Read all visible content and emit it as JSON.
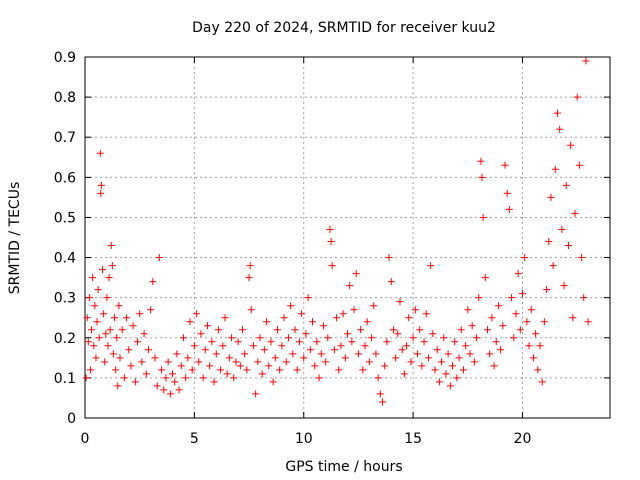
{
  "chart_data": {
    "type": "scatter",
    "title": "Day 220 of 2024, SRMTID for receiver kuu2",
    "xlabel": "GPS time / hours",
    "ylabel": "SRMTID / TECUs",
    "xlim": [
      0,
      24
    ],
    "ylim": [
      0,
      0.9
    ],
    "xticks": [
      0,
      5,
      10,
      15,
      20
    ],
    "yticks": [
      0,
      0.1,
      0.2,
      0.3,
      0.4,
      0.5,
      0.6,
      0.7,
      0.8,
      0.9
    ],
    "xtick_labels": [
      "0",
      "5",
      "10",
      "15",
      "20"
    ],
    "ytick_labels": [
      "0",
      "0.1",
      "0.2",
      "0.3",
      "0.4",
      "0.5",
      "0.6",
      "0.7",
      "0.8",
      "0.9"
    ],
    "grid": true,
    "marker": "+",
    "color": "#ff0000",
    "series": [
      {
        "name": "SRMTID",
        "points": [
          [
            0.05,
            0.1
          ],
          [
            0.1,
            0.25
          ],
          [
            0.15,
            0.19
          ],
          [
            0.2,
            0.3
          ],
          [
            0.25,
            0.12
          ],
          [
            0.3,
            0.22
          ],
          [
            0.35,
            0.35
          ],
          [
            0.4,
            0.18
          ],
          [
            0.45,
            0.28
          ],
          [
            0.5,
            0.15
          ],
          [
            0.55,
            0.24
          ],
          [
            0.6,
            0.32
          ],
          [
            0.65,
            0.2
          ],
          [
            0.7,
            0.66
          ],
          [
            0.72,
            0.56
          ],
          [
            0.75,
            0.58
          ],
          [
            0.8,
            0.37
          ],
          [
            0.85,
            0.26
          ],
          [
            0.9,
            0.14
          ],
          [
            0.95,
            0.21
          ],
          [
            1.0,
            0.3
          ],
          [
            1.05,
            0.18
          ],
          [
            1.1,
            0.35
          ],
          [
            1.15,
            0.22
          ],
          [
            1.2,
            0.43
          ],
          [
            1.25,
            0.38
          ],
          [
            1.3,
            0.16
          ],
          [
            1.35,
            0.25
          ],
          [
            1.4,
            0.12
          ],
          [
            1.45,
            0.2
          ],
          [
            1.5,
            0.08
          ],
          [
            1.55,
            0.28
          ],
          [
            1.6,
            0.15
          ],
          [
            1.7,
            0.22
          ],
          [
            1.8,
            0.1
          ],
          [
            1.9,
            0.25
          ],
          [
            2.0,
            0.17
          ],
          [
            2.1,
            0.13
          ],
          [
            2.2,
            0.23
          ],
          [
            2.3,
            0.09
          ],
          [
            2.4,
            0.19
          ],
          [
            2.5,
            0.26
          ],
          [
            2.6,
            0.14
          ],
          [
            2.7,
            0.21
          ],
          [
            2.8,
            0.11
          ],
          [
            2.9,
            0.17
          ],
          [
            3.0,
            0.27
          ],
          [
            3.1,
            0.34
          ],
          [
            3.2,
            0.15
          ],
          [
            3.3,
            0.08
          ],
          [
            3.4,
            0.4
          ],
          [
            3.5,
            0.12
          ],
          [
            3.6,
            0.07
          ],
          [
            3.7,
            0.1
          ],
          [
            3.8,
            0.14
          ],
          [
            3.9,
            0.06
          ],
          [
            4.0,
            0.11
          ],
          [
            4.1,
            0.09
          ],
          [
            4.2,
            0.16
          ],
          [
            4.3,
            0.07
          ],
          [
            4.4,
            0.13
          ],
          [
            4.5,
            0.2
          ],
          [
            4.6,
            0.1
          ],
          [
            4.7,
            0.15
          ],
          [
            4.8,
            0.24
          ],
          [
            4.9,
            0.12
          ],
          [
            5.0,
            0.18
          ],
          [
            5.1,
            0.26
          ],
          [
            5.2,
            0.14
          ],
          [
            5.3,
            0.21
          ],
          [
            5.4,
            0.1
          ],
          [
            5.5,
            0.17
          ],
          [
            5.6,
            0.23
          ],
          [
            5.7,
            0.13
          ],
          [
            5.8,
            0.19
          ],
          [
            5.9,
            0.09
          ],
          [
            6.0,
            0.16
          ],
          [
            6.1,
            0.22
          ],
          [
            6.2,
            0.12
          ],
          [
            6.3,
            0.18
          ],
          [
            6.4,
            0.25
          ],
          [
            6.5,
            0.11
          ],
          [
            6.6,
            0.15
          ],
          [
            6.7,
            0.2
          ],
          [
            6.8,
            0.1
          ],
          [
            6.9,
            0.14
          ],
          [
            7.0,
            0.19
          ],
          [
            7.1,
            0.13
          ],
          [
            7.2,
            0.22
          ],
          [
            7.3,
            0.16
          ],
          [
            7.4,
            0.12
          ],
          [
            7.5,
            0.35
          ],
          [
            7.55,
            0.38
          ],
          [
            7.6,
            0.27
          ],
          [
            7.7,
            0.18
          ],
          [
            7.8,
            0.06
          ],
          [
            7.9,
            0.14
          ],
          [
            8.0,
            0.2
          ],
          [
            8.1,
            0.11
          ],
          [
            8.2,
            0.17
          ],
          [
            8.3,
            0.24
          ],
          [
            8.4,
            0.13
          ],
          [
            8.5,
            0.19
          ],
          [
            8.6,
            0.09
          ],
          [
            8.7,
            0.15
          ],
          [
            8.8,
            0.22
          ],
          [
            8.9,
            0.12
          ],
          [
            9.0,
            0.18
          ],
          [
            9.1,
            0.25
          ],
          [
            9.2,
            0.14
          ],
          [
            9.3,
            0.2
          ],
          [
            9.4,
            0.28
          ],
          [
            9.5,
            0.16
          ],
          [
            9.6,
            0.22
          ],
          [
            9.7,
            0.12
          ],
          [
            9.8,
            0.19
          ],
          [
            9.9,
            0.26
          ],
          [
            10.0,
            0.15
          ],
          [
            10.1,
            0.21
          ],
          [
            10.2,
            0.3
          ],
          [
            10.3,
            0.17
          ],
          [
            10.4,
            0.24
          ],
          [
            10.5,
            0.13
          ],
          [
            10.6,
            0.19
          ],
          [
            10.7,
            0.1
          ],
          [
            10.8,
            0.16
          ],
          [
            10.9,
            0.23
          ],
          [
            11.0,
            0.14
          ],
          [
            11.1,
            0.2
          ],
          [
            11.2,
            0.47
          ],
          [
            11.25,
            0.44
          ],
          [
            11.3,
            0.38
          ],
          [
            11.4,
            0.17
          ],
          [
            11.5,
            0.25
          ],
          [
            11.6,
            0.12
          ],
          [
            11.7,
            0.18
          ],
          [
            11.8,
            0.26
          ],
          [
            11.9,
            0.15
          ],
          [
            12.0,
            0.21
          ],
          [
            12.1,
            0.33
          ],
          [
            12.2,
            0.19
          ],
          [
            12.3,
            0.27
          ],
          [
            12.4,
            0.36
          ],
          [
            12.5,
            0.16
          ],
          [
            12.6,
            0.22
          ],
          [
            12.7,
            0.12
          ],
          [
            12.8,
            0.18
          ],
          [
            12.9,
            0.24
          ],
          [
            13.0,
            0.14
          ],
          [
            13.1,
            0.2
          ],
          [
            13.2,
            0.28
          ],
          [
            13.3,
            0.16
          ],
          [
            13.4,
            0.1
          ],
          [
            13.5,
            0.06
          ],
          [
            13.6,
            0.04
          ],
          [
            13.7,
            0.13
          ],
          [
            13.8,
            0.19
          ],
          [
            13.9,
            0.4
          ],
          [
            14.0,
            0.34
          ],
          [
            14.1,
            0.22
          ],
          [
            14.2,
            0.15
          ],
          [
            14.3,
            0.21
          ],
          [
            14.4,
            0.29
          ],
          [
            14.5,
            0.17
          ],
          [
            14.6,
            0.11
          ],
          [
            14.7,
            0.18
          ],
          [
            14.8,
            0.25
          ],
          [
            14.9,
            0.14
          ],
          [
            15.0,
            0.2
          ],
          [
            15.1,
            0.27
          ],
          [
            15.2,
            0.16
          ],
          [
            15.3,
            0.22
          ],
          [
            15.4,
            0.13
          ],
          [
            15.5,
            0.19
          ],
          [
            15.6,
            0.26
          ],
          [
            15.7,
            0.15
          ],
          [
            15.8,
            0.38
          ],
          [
            15.9,
            0.21
          ],
          [
            16.0,
            0.12
          ],
          [
            16.1,
            0.17
          ],
          [
            16.2,
            0.09
          ],
          [
            16.3,
            0.14
          ],
          [
            16.4,
            0.2
          ],
          [
            16.5,
            0.11
          ],
          [
            16.6,
            0.16
          ],
          [
            16.7,
            0.08
          ],
          [
            16.8,
            0.13
          ],
          [
            16.9,
            0.19
          ],
          [
            17.0,
            0.1
          ],
          [
            17.1,
            0.15
          ],
          [
            17.2,
            0.22
          ],
          [
            17.3,
            0.12
          ],
          [
            17.4,
            0.18
          ],
          [
            17.5,
            0.27
          ],
          [
            17.6,
            0.16
          ],
          [
            17.7,
            0.23
          ],
          [
            17.8,
            0.14
          ],
          [
            17.9,
            0.2
          ],
          [
            18.0,
            0.3
          ],
          [
            18.1,
            0.64
          ],
          [
            18.15,
            0.6
          ],
          [
            18.2,
            0.5
          ],
          [
            18.3,
            0.35
          ],
          [
            18.4,
            0.22
          ],
          [
            18.5,
            0.16
          ],
          [
            18.6,
            0.25
          ],
          [
            18.7,
            0.13
          ],
          [
            18.8,
            0.19
          ],
          [
            18.9,
            0.28
          ],
          [
            19.0,
            0.17
          ],
          [
            19.1,
            0.23
          ],
          [
            19.2,
            0.63
          ],
          [
            19.3,
            0.56
          ],
          [
            19.4,
            0.52
          ],
          [
            19.5,
            0.3
          ],
          [
            19.6,
            0.2
          ],
          [
            19.7,
            0.26
          ],
          [
            19.8,
            0.36
          ],
          [
            19.9,
            0.22
          ],
          [
            20.0,
            0.31
          ],
          [
            20.1,
            0.4
          ],
          [
            20.2,
            0.24
          ],
          [
            20.3,
            0.18
          ],
          [
            20.4,
            0.27
          ],
          [
            20.5,
            0.15
          ],
          [
            20.6,
            0.21
          ],
          [
            20.7,
            0.12
          ],
          [
            20.8,
            0.18
          ],
          [
            20.9,
            0.09
          ],
          [
            21.0,
            0.24
          ],
          [
            21.1,
            0.32
          ],
          [
            21.2,
            0.44
          ],
          [
            21.3,
            0.55
          ],
          [
            21.4,
            0.38
          ],
          [
            21.5,
            0.62
          ],
          [
            21.6,
            0.76
          ],
          [
            21.7,
            0.72
          ],
          [
            21.8,
            0.47
          ],
          [
            21.9,
            0.33
          ],
          [
            22.0,
            0.58
          ],
          [
            22.1,
            0.43
          ],
          [
            22.2,
            0.68
          ],
          [
            22.3,
            0.25
          ],
          [
            22.4,
            0.51
          ],
          [
            22.5,
            0.8
          ],
          [
            22.6,
            0.63
          ],
          [
            22.7,
            0.4
          ],
          [
            22.8,
            0.3
          ],
          [
            22.9,
            0.89
          ],
          [
            23.0,
            0.24
          ]
        ]
      }
    ]
  }
}
